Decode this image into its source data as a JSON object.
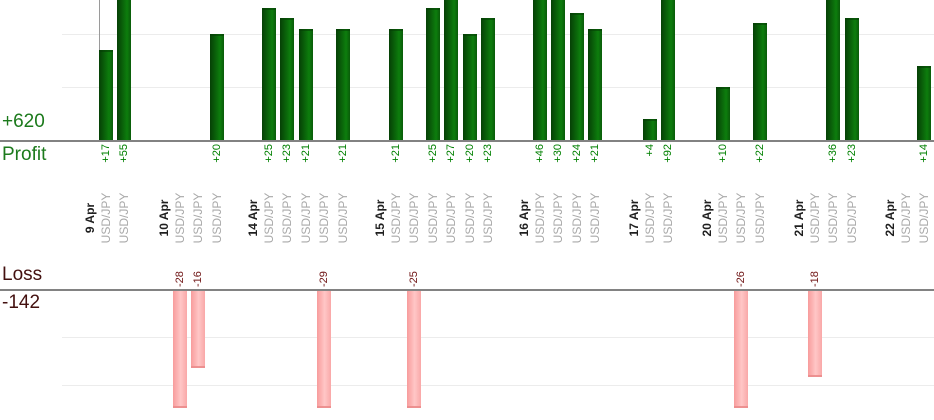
{
  "chart_data": {
    "type": "bar",
    "title": "",
    "legend": "none",
    "grid": "on",
    "profit_axis": {
      "total": "+620",
      "label": "Profit",
      "total_value": 620,
      "gridline_values": [
        10,
        20
      ]
    },
    "loss_axis": {
      "label": "Loss",
      "total": "-142",
      "total_value": -142,
      "gridline_values": [
        -10,
        -20
      ]
    },
    "colors": {
      "profit_bar": "#0d7d0d",
      "loss_bar": "#f9a8a8",
      "profit_value_text": "#008000",
      "loss_value_text": "#701616",
      "profit_axis_text": "#1c7a1c",
      "loss_axis_text": "#43100f",
      "date_text": "#1f1f1f",
      "symbol_text": "#a9a9a9"
    },
    "groups": [
      {
        "date": "9 Apr",
        "trades": [
          {
            "symbol": "USD/JPY",
            "value": 17
          },
          {
            "symbol": "USD/JPY",
            "value": 55
          }
        ]
      },
      {
        "date": "10 Apr",
        "trades": [
          {
            "symbol": "USD/JPY",
            "value": -28
          },
          {
            "symbol": "USD/JPY",
            "value": -16
          },
          {
            "symbol": "USD/JPY",
            "value": 20
          }
        ]
      },
      {
        "date": "14 Apr",
        "trades": [
          {
            "symbol": "USD/JPY",
            "value": 25
          },
          {
            "symbol": "USD/JPY",
            "value": 23
          },
          {
            "symbol": "USD/JPY",
            "value": 21
          },
          {
            "symbol": "USD/JPY",
            "value": -29
          },
          {
            "symbol": "USD/JPY",
            "value": 21
          }
        ]
      },
      {
        "date": "15 Apr",
        "trades": [
          {
            "symbol": "USD/JPY",
            "value": 21
          },
          {
            "symbol": "USD/JPY",
            "value": -25
          },
          {
            "symbol": "USD/JPY",
            "value": 25
          },
          {
            "symbol": "USD/JPY",
            "value": 27
          },
          {
            "symbol": "USD/JPY",
            "value": 20
          },
          {
            "symbol": "USD/JPY",
            "value": 23
          }
        ]
      },
      {
        "date": "16 Apr",
        "trades": [
          {
            "symbol": "USD/JPY",
            "value": 46
          },
          {
            "symbol": "USD/JPY",
            "value": 30
          },
          {
            "symbol": "USD/JPY",
            "value": 24
          },
          {
            "symbol": "USD/JPY",
            "value": 21
          }
        ]
      },
      {
        "date": "17 Apr",
        "trades": [
          {
            "symbol": "USD/JPY",
            "value": 4
          },
          {
            "symbol": "USD/JPY",
            "value": 92
          }
        ]
      },
      {
        "date": "20 Apr",
        "trades": [
          {
            "symbol": "USD/JPY",
            "value": 10
          },
          {
            "symbol": "USD/JPY",
            "value": -26
          },
          {
            "symbol": "USD/JPY",
            "value": 22
          }
        ]
      },
      {
        "date": "21 Apr",
        "trades": [
          {
            "symbol": "USD/JPY",
            "value": -18
          },
          {
            "symbol": "USD/JPY",
            "value": 36
          },
          {
            "symbol": "USD/JPY",
            "value": 23
          }
        ]
      },
      {
        "date": "22 Apr",
        "trades": [
          {
            "symbol": "USD/JPY",
            "value": 0
          },
          {
            "symbol": "USD/JPY",
            "value": 14
          }
        ]
      }
    ]
  }
}
